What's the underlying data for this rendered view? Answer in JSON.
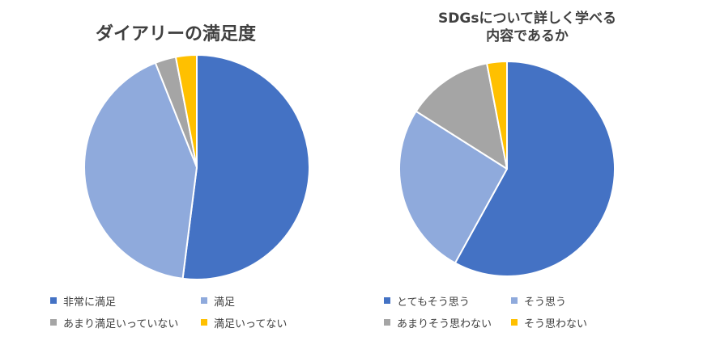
{
  "chart_data": [
    {
      "type": "pie",
      "title": "ダイアリーの満足度",
      "categories": [
        "非常に満足",
        "満足",
        "あまり満足いっていない",
        "満足いってない"
      ],
      "values": [
        52,
        42,
        3,
        3
      ],
      "colors": [
        "#4472C4",
        "#8FAADC",
        "#A5A5A5",
        "#FFC000"
      ],
      "legend_position": "bottom"
    },
    {
      "type": "pie",
      "title_lines": [
        "SDGsについて詳しく学べる",
        "内容であるか"
      ],
      "categories": [
        "とてもそう思う",
        "そう思う",
        "あまりそう思わない",
        "そう思わない"
      ],
      "values": [
        58,
        26,
        13,
        3
      ],
      "colors": [
        "#4472C4",
        "#8FAADC",
        "#A5A5A5",
        "#FFC000"
      ],
      "legend_position": "bottom"
    }
  ]
}
